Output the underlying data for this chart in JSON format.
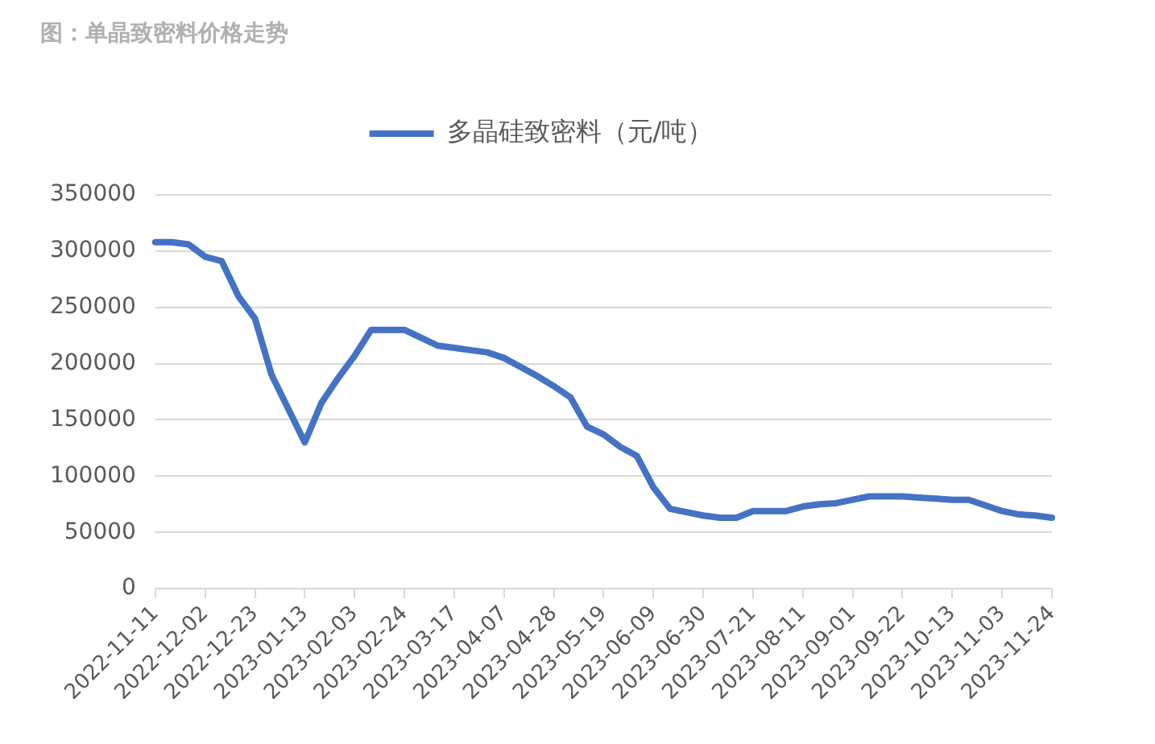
{
  "chart_data": {
    "type": "line",
    "title": "图：单晶致密料价格走势",
    "categories": [
      "2022-11-11",
      null,
      null,
      "2022-12-02",
      null,
      null,
      "2022-12-23",
      null,
      null,
      "2023-01-13",
      null,
      null,
      "2023-02-03",
      null,
      null,
      "2023-02-24",
      null,
      null,
      "2023-03-17",
      null,
      null,
      "2023-04-07",
      null,
      null,
      "2023-04-28",
      null,
      null,
      "2023-05-19",
      null,
      null,
      "2023-06-09",
      null,
      null,
      "2023-06-30",
      null,
      null,
      "2023-07-21",
      null,
      null,
      "2023-08-11",
      null,
      null,
      "2023-09-01",
      null,
      null,
      "2023-09-22",
      null,
      null,
      "2023-10-13",
      null,
      null,
      "2023-11-03",
      null,
      null,
      "2023-11-24"
    ],
    "series": [
      {
        "name": "多晶硅致密料（元/吨）",
        "color": "#4472c4",
        "values": [
          308000,
          308000,
          306000,
          295000,
          291000,
          260000,
          240000,
          190000,
          160000,
          130000,
          165000,
          187000,
          207000,
          230000,
          230000,
          230000,
          223000,
          216000,
          214000,
          212000,
          210000,
          205000,
          197000,
          189000,
          180000,
          170000,
          144000,
          137000,
          126000,
          118000,
          90000,
          71000,
          68000,
          65000,
          63000,
          63000,
          69000,
          69000,
          69000,
          73000,
          75000,
          76000,
          79000,
          82000,
          82000,
          82000,
          81000,
          80000,
          79000,
          79000,
          74000,
          69000,
          66000,
          65000,
          63000
        ]
      }
    ],
    "ylim": [
      0,
      350000
    ],
    "yticks": [
      0,
      50000,
      100000,
      150000,
      200000,
      250000,
      300000,
      350000
    ],
    "grid": "y",
    "legend": "top",
    "marker": "none",
    "line_style": "solid"
  }
}
